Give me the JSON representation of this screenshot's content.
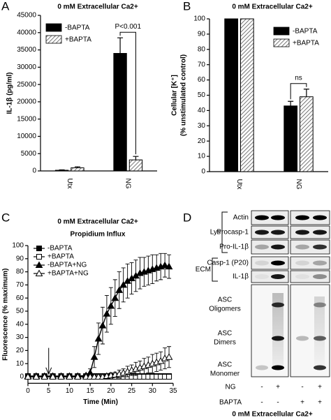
{
  "chart_data": [
    {
      "type": "bar",
      "label": "A",
      "title": "0 mM Extracellular Ca2+",
      "ylabel": [
        "IL-1β (pg/ml)"
      ],
      "categories": [
        "Utx",
        "NG"
      ],
      "series": [
        {
          "name": "-BAPTA",
          "color": "#000000",
          "hatch": false,
          "values": [
            200,
            34000
          ],
          "errors": [
            100,
            4500
          ]
        },
        {
          "name": "+BAPTA",
          "color": "#777777",
          "hatch": true,
          "values": [
            900,
            3200
          ],
          "errors": [
            300,
            1000
          ]
        }
      ],
      "ylim": [
        0,
        45000
      ],
      "yticks": [
        0,
        5000,
        10000,
        15000,
        20000,
        25000,
        30000,
        35000,
        40000,
        45000
      ],
      "legend": "upper left",
      "annotation": {
        "text": "P<0.001",
        "category": 1
      }
    },
    {
      "type": "bar",
      "label": "B",
      "title": "0 mM Extracellular Ca2+",
      "ylabel": [
        "Cellular [K⁺]",
        "(% unstimulated control)"
      ],
      "categories": [
        "Utx",
        "NG"
      ],
      "series": [
        {
          "name": "-BAPTA",
          "color": "#000000",
          "hatch": false,
          "values": [
            100,
            43
          ],
          "errors": [
            0,
            3
          ]
        },
        {
          "name": "+BAPTA",
          "color": "#777777",
          "hatch": true,
          "values": [
            100,
            49
          ],
          "errors": [
            0,
            5
          ]
        }
      ],
      "ylim": [
        0,
        100
      ],
      "yticks": [
        0,
        10,
        20,
        30,
        40,
        50,
        60,
        70,
        80,
        90,
        100
      ],
      "legend": "upper right",
      "annotation": {
        "text": "ns",
        "category": 1
      }
    },
    {
      "type": "line",
      "label": "C",
      "title": "0 mM Extracellular Ca2+",
      "subtitle": "Propidium Influx",
      "xlabel": "Time (Min)",
      "ylabel": [
        "Fluorescence (% maximum)"
      ],
      "x": [
        0,
        2,
        4,
        6,
        8,
        10,
        12,
        14,
        15,
        16,
        17,
        18,
        19,
        20,
        21,
        22,
        23,
        24,
        25,
        26,
        27,
        28,
        29,
        30,
        31,
        32,
        33,
        34
      ],
      "series": [
        {
          "name": "-BAPTA",
          "color": "#000000",
          "marker": "square",
          "filled": true,
          "values": [
            0.5,
            0.5,
            0.5,
            0.5,
            0.5,
            0.5,
            0.5,
            0.5,
            0.5,
            0.5,
            0.5,
            0.5,
            0.5,
            0.5,
            0.5,
            0.5,
            0.5,
            0.5,
            0.5,
            0.5,
            0.5,
            0.5,
            0.5,
            0.5,
            0.5,
            0.5,
            0.5,
            0.5
          ]
        },
        {
          "name": "+BAPTA",
          "color": "#000000",
          "marker": "square",
          "filled": false,
          "values": [
            0,
            0,
            0,
            0,
            0,
            0,
            0,
            0,
            0,
            0,
            0,
            0,
            0,
            0,
            0,
            0,
            0,
            0,
            0,
            0,
            0,
            0,
            0,
            0,
            0,
            0,
            0,
            0
          ]
        },
        {
          "name": "-BAPTA+NG",
          "color": "#000000",
          "marker": "triangle",
          "filled": true,
          "values": [
            0.5,
            0.5,
            0.5,
            0.5,
            0.5,
            0.5,
            0.5,
            1,
            3,
            15,
            29,
            39,
            48,
            54,
            60,
            66,
            70,
            73,
            75,
            77,
            79,
            80,
            81,
            82,
            83,
            84,
            85,
            84
          ],
          "errors": [
            1,
            1,
            1,
            1,
            1,
            1,
            1,
            1,
            3,
            8,
            12,
            14,
            14,
            14,
            14,
            14,
            13,
            13,
            12,
            12,
            12,
            11,
            11,
            11,
            10,
            10,
            9,
            9
          ]
        },
        {
          "name": "+BAPTA+NG",
          "color": "#000000",
          "marker": "triangle",
          "filled": false,
          "values": [
            0,
            0,
            0,
            0,
            0,
            0,
            0,
            0,
            0,
            0,
            0,
            0,
            0.5,
            1,
            1.5,
            2,
            3,
            4,
            5,
            6,
            7,
            8,
            9,
            10,
            11,
            12,
            14,
            15
          ],
          "errors": [
            1,
            1,
            1,
            1,
            1,
            1,
            1,
            1,
            1,
            1,
            1,
            1,
            1,
            2,
            2,
            3,
            3,
            4,
            4,
            5,
            5,
            6,
            6,
            7,
            7,
            7,
            8,
            8
          ]
        }
      ],
      "xlim": [
        0,
        35
      ],
      "xticks": [
        0,
        5,
        10,
        15,
        20,
        25,
        30,
        35
      ],
      "ylim": [
        -5,
        100
      ],
      "yticks": [
        0,
        10,
        20,
        30,
        40,
        50,
        60,
        70,
        80,
        90,
        100
      ],
      "legend": "upper left",
      "arrow_x": 5
    }
  ],
  "blot": {
    "label": "D",
    "rows": [
      "Actin",
      "Procasp-1",
      "Pro-IL-1β",
      "Casp-1 (P20)",
      "IL-1β"
    ],
    "groups": [
      "Lys",
      "ECM"
    ],
    "asc": [
      [
        "ASC",
        "Oligomers"
      ],
      [
        "ASC",
        "Dimers"
      ],
      [
        "ASC",
        "Monomer"
      ]
    ],
    "conditions": [
      {
        "name": "NG",
        "signs": [
          "-",
          "+",
          "-",
          "+"
        ]
      },
      {
        "name": "BAPTA",
        "signs": [
          "-",
          "-",
          "+",
          "+"
        ]
      }
    ],
    "caption": "0 mM Extracellular Ca2+"
  }
}
